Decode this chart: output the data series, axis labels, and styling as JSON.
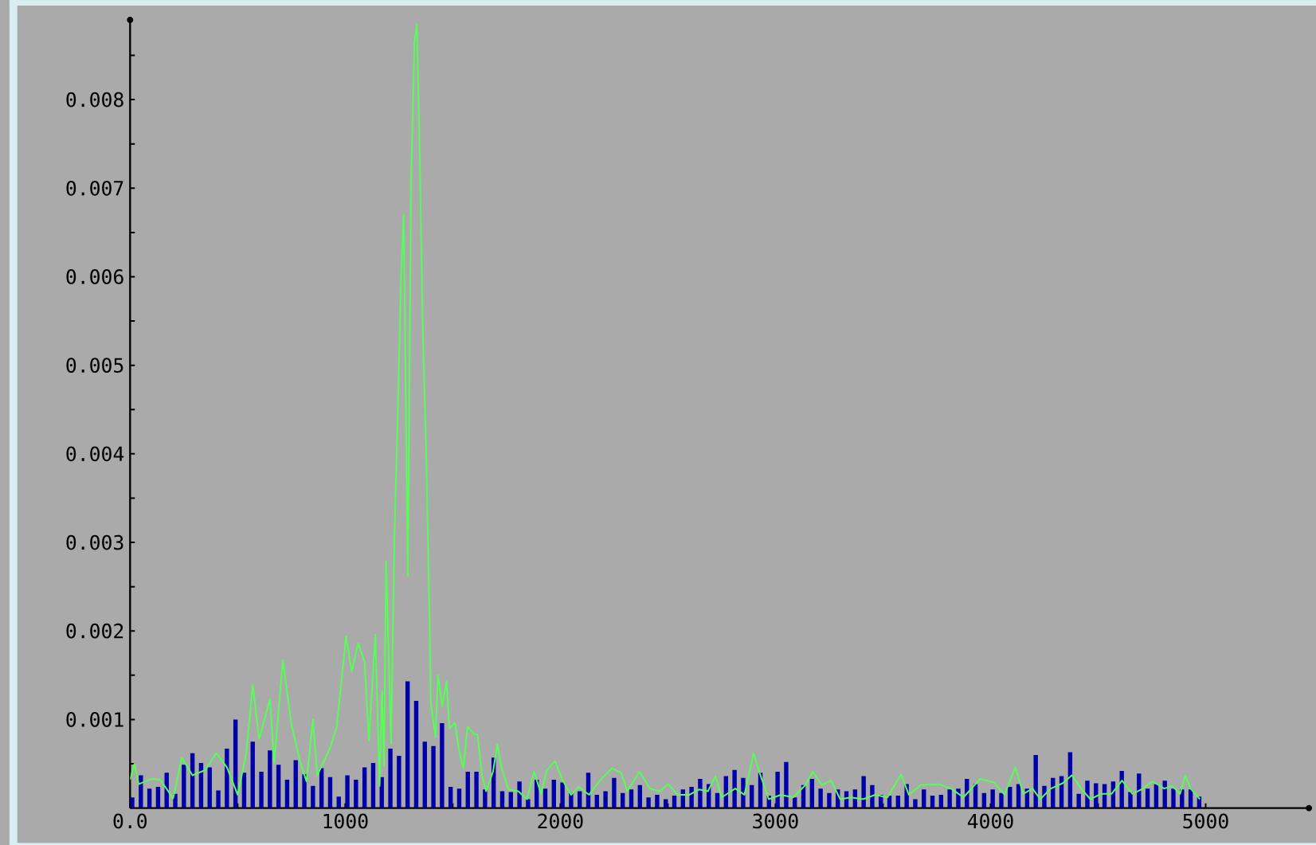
{
  "chart_data": {
    "type": "line",
    "series": [
      {
        "type": "bar",
        "color": "#0000aa",
        "x": [
          10,
          50,
          90,
          130,
          170,
          210,
          250,
          290,
          330,
          370,
          410,
          450,
          490,
          530,
          570,
          610,
          650,
          690,
          730,
          770,
          810,
          850,
          890,
          930,
          970,
          1010,
          1050,
          1090,
          1130,
          1170,
          1210,
          1250,
          1290,
          1330,
          1370,
          1410,
          1450,
          1490,
          1530,
          1570,
          1610,
          1650,
          1690,
          1730,
          1770,
          1810,
          1850,
          1890,
          1930,
          1970,
          2010,
          2050,
          2090,
          2130,
          2170,
          2210,
          2250,
          2290,
          2330,
          2370,
          2410,
          2450,
          2490,
          2530,
          2570,
          2610,
          2650,
          2690,
          2730,
          2770,
          2810,
          2850,
          2890,
          2930,
          2970,
          3010,
          3050,
          3090,
          3130,
          3170,
          3210,
          3250,
          3290,
          3330,
          3370,
          3410,
          3450,
          3490,
          3530,
          3570,
          3610,
          3650,
          3690,
          3730,
          3770,
          3810,
          3850,
          3890,
          3930,
          3970,
          4010,
          4050,
          4090,
          4130,
          4170,
          4210,
          4250,
          4290,
          4330,
          4370,
          4410,
          4450,
          4490,
          4530,
          4570,
          4610,
          4650,
          4690,
          4730,
          4770,
          4810,
          4850,
          4890,
          4930,
          4970
        ],
        "values": [
          0.00012,
          0.00037,
          0.00022,
          0.00024,
          0.0004,
          0.00016,
          0.00049,
          0.00062,
          0.00051,
          0.00046,
          0.0002,
          0.00067,
          0.001,
          0.0004,
          0.00075,
          0.00041,
          0.00065,
          0.00049,
          0.00032,
          0.00054,
          0.00038,
          0.00025,
          0.00045,
          0.00035,
          0.00013,
          0.00037,
          0.00032,
          0.00046,
          0.00051,
          0.00035,
          0.00067,
          0.00059,
          0.00143,
          0.00121,
          0.00075,
          0.0007,
          0.00096,
          0.00024,
          0.00022,
          0.00041,
          0.00041,
          0.00021,
          0.00057,
          0.00019,
          0.00018,
          0.0003,
          0.0001,
          0.00032,
          0.00022,
          0.00032,
          0.00029,
          0.00017,
          0.00019,
          0.0004,
          0.00015,
          0.00019,
          0.00034,
          0.00017,
          0.00021,
          0.00026,
          0.00012,
          0.00015,
          0.0001,
          0.00014,
          0.00021,
          0.00024,
          0.00033,
          0.00027,
          0.00017,
          0.00036,
          0.00043,
          0.00034,
          0.00026,
          0.0004,
          0.00014,
          0.00041,
          0.00052,
          0.00012,
          0.00026,
          0.00033,
          0.00022,
          0.00017,
          0.00021,
          0.00019,
          0.00021,
          0.00036,
          0.00026,
          0.00015,
          0.00014,
          0.00014,
          0.00027,
          0.0001,
          0.00021,
          0.00014,
          0.00015,
          0.00021,
          0.00022,
          0.00033,
          0.00027,
          0.00017,
          0.00021,
          0.00017,
          0.00024,
          0.00027,
          0.00022,
          0.0006,
          0.00025,
          0.00034,
          0.00036,
          0.00063,
          0.00016,
          0.00031,
          0.00028,
          0.00027,
          0.0003,
          0.00042,
          0.00018,
          0.00039,
          0.00022,
          0.00027,
          0.00031,
          0.00022,
          0.00021,
          0.00021,
          0.00013
        ]
      },
      {
        "color": "#55ff55",
        "x": [
          0,
          20,
          40,
          100,
          140,
          200,
          240,
          290,
          350,
          400,
          450,
          500,
          540,
          570,
          600,
          650,
          670,
          710,
          750,
          790,
          820,
          850,
          870,
          930,
          960,
          1004,
          1030,
          1060,
          1090,
          1110,
          1140,
          1160,
          1171,
          1180,
          1190,
          1213,
          1229,
          1240,
          1260,
          1272,
          1291,
          1306,
          1322,
          1333,
          1345,
          1361,
          1376,
          1392,
          1398,
          1420,
          1431,
          1451,
          1471,
          1484,
          1510,
          1530,
          1549,
          1569,
          1602,
          1615,
          1635,
          1655,
          1687,
          1707,
          1727,
          1759,
          1805,
          1845,
          1878,
          1910,
          1937,
          1976,
          2007,
          2050,
          2085,
          2134,
          2184,
          2240,
          2283,
          2311,
          2368,
          2417,
          2460,
          2502,
          2545,
          2601,
          2644,
          2686,
          2721,
          2750,
          2813,
          2856,
          2898,
          2926,
          2969,
          3025,
          3082,
          3139,
          3174,
          3216,
          3259,
          3301,
          3351,
          3407,
          3464,
          3521,
          3584,
          3620,
          3676,
          3761,
          3817,
          3874,
          3952,
          4015,
          4065,
          4115,
          4152,
          4195,
          4231,
          4280,
          4335,
          4378,
          4421,
          4464,
          4513,
          4562,
          4611,
          4660,
          4709,
          4752,
          4807,
          4844,
          4881,
          4905,
          4930,
          4973
        ],
        "values": [
          0.00032,
          0.0005,
          0.00027,
          0.00033,
          0.00032,
          0.00011,
          0.00057,
          0.00037,
          0.00043,
          0.00062,
          0.00046,
          0.00015,
          0.00062,
          0.00139,
          0.00078,
          0.00123,
          0.00051,
          0.00167,
          0.00094,
          0.00053,
          0.0003,
          0.001,
          0.00037,
          0.00068,
          0.00091,
          0.00194,
          0.00154,
          0.00186,
          0.00165,
          0.00076,
          0.00196,
          0.00025,
          0.00132,
          0.00048,
          0.00279,
          0.00073,
          0.0031,
          0.00405,
          0.00602,
          0.0067,
          0.00263,
          0.00705,
          0.00865,
          0.00885,
          0.00753,
          0.00536,
          0.00405,
          0.00213,
          0.00118,
          0.0008,
          0.0015,
          0.00115,
          0.00143,
          0.0009,
          0.00096,
          0.00064,
          0.00045,
          0.00092,
          0.00083,
          0.00083,
          0.00038,
          0.00019,
          0.00041,
          0.00072,
          0.00045,
          0.00021,
          0.00019,
          0.0001,
          0.00041,
          0.00016,
          0.00043,
          0.00053,
          0.00033,
          0.00015,
          0.00024,
          0.00015,
          0.00031,
          0.00045,
          0.0004,
          0.00019,
          0.00041,
          0.00022,
          0.00019,
          0.00027,
          0.00015,
          0.00015,
          0.00021,
          0.00019,
          0.00036,
          0.00012,
          0.00022,
          0.00015,
          0.00062,
          0.0004,
          0.0001,
          0.00015,
          0.00012,
          0.00026,
          0.00041,
          0.00026,
          0.00031,
          0.0001,
          0.00012,
          0.0001,
          0.00015,
          0.00012,
          0.00038,
          0.00015,
          0.00026,
          0.00027,
          0.00022,
          0.00012,
          0.00033,
          0.00029,
          0.00015,
          0.00046,
          0.00016,
          0.00022,
          0.0001,
          0.00022,
          0.00028,
          0.00037,
          0.00022,
          0.0001,
          0.00016,
          0.00016,
          0.00031,
          0.00016,
          0.00022,
          0.0003,
          0.00022,
          0.00025,
          0.00016,
          0.00037,
          0.00022,
          0.0001
        ]
      }
    ],
    "xlim": [
      0,
      5480
    ],
    "ylim": [
      0,
      0.0089
    ],
    "xticks": [
      {
        "value": 0,
        "label": "0.0"
      },
      {
        "value": 500,
        "label": null
      },
      1000,
      {
        "value": 1500,
        "label": null
      },
      2000,
      {
        "value": 2500,
        "label": null
      },
      3000,
      {
        "value": 3500,
        "label": null
      },
      4000,
      {
        "value": 4500,
        "label": null
      },
      5000
    ],
    "yticks": [
      {
        "value": 0.0005,
        "label": null
      },
      0.001,
      {
        "value": 0.0015,
        "label": null
      },
      0.002,
      {
        "value": 0.0025,
        "label": null
      },
      0.003,
      {
        "value": 0.0035,
        "label": null
      },
      0.004,
      {
        "value": 0.0045,
        "label": null
      },
      0.005,
      {
        "value": 0.0055,
        "label": null
      },
      0.006,
      {
        "value": 0.0065,
        "label": null
      },
      0.007,
      {
        "value": 0.0075,
        "label": null
      },
      0.008,
      {
        "value": 0.0085,
        "label": null
      }
    ]
  }
}
